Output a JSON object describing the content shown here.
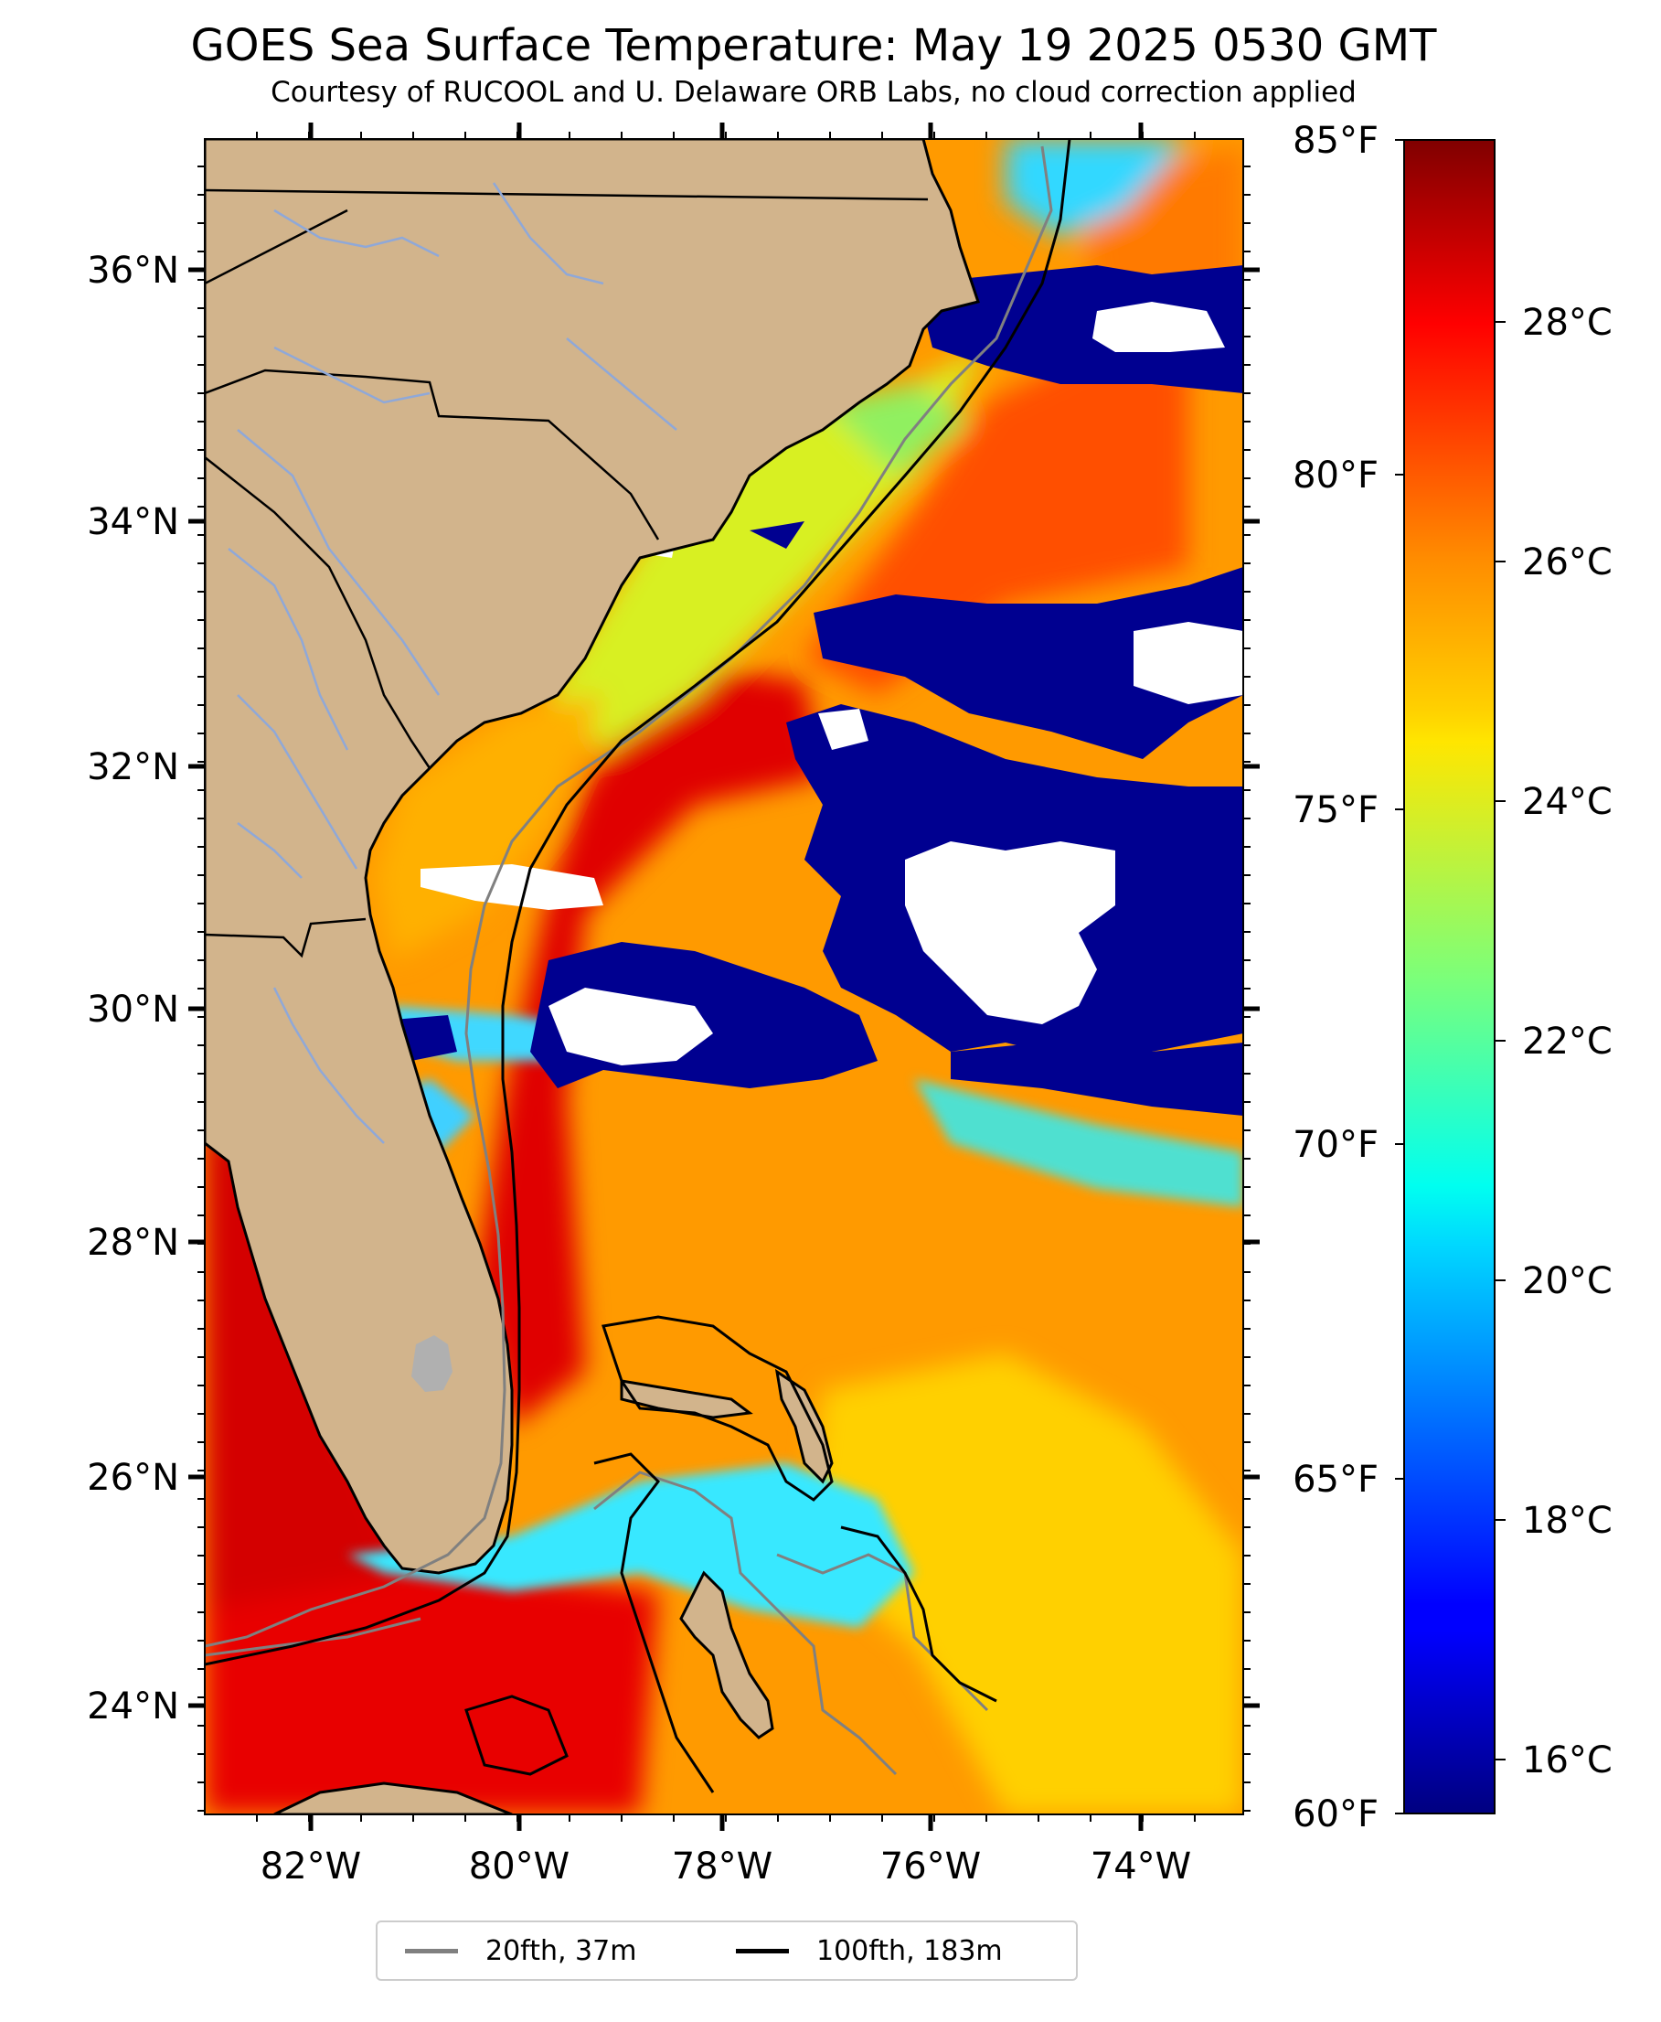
{
  "title": "GOES Sea Surface Temperature: May 19 2025 0530 GMT",
  "subtitle": "Courtesy of RUCOOL and U. Delaware ORB Labs, no cloud correction applied",
  "map": {
    "lat_ticks": [
      "36°N",
      "34°N",
      "32°N",
      "30°N",
      "28°N",
      "26°N",
      "24°N"
    ],
    "lon_ticks": [
      "82°W",
      "80°W",
      "78°W",
      "76°W",
      "74°W"
    ],
    "colors": {
      "land": "#D2B48C",
      "cloud": "#FFFFFF",
      "lake": "#B0B0B0",
      "rivers": "#8FA8D8",
      "coast": "#000000"
    }
  },
  "colorbar": {
    "fahrenheit_ticks": [
      "85°F",
      "80°F",
      "75°F",
      "70°F",
      "65°F",
      "60°F"
    ],
    "celsius_ticks": [
      "28°C",
      "26°C",
      "24°C",
      "22°C",
      "20°C",
      "18°C",
      "16°C"
    ],
    "colormap": "jet"
  },
  "legend": {
    "items": [
      {
        "label": "20fth, 37m",
        "color": "#808080"
      },
      {
        "label": "100fth, 183m",
        "color": "#000000"
      }
    ]
  }
}
